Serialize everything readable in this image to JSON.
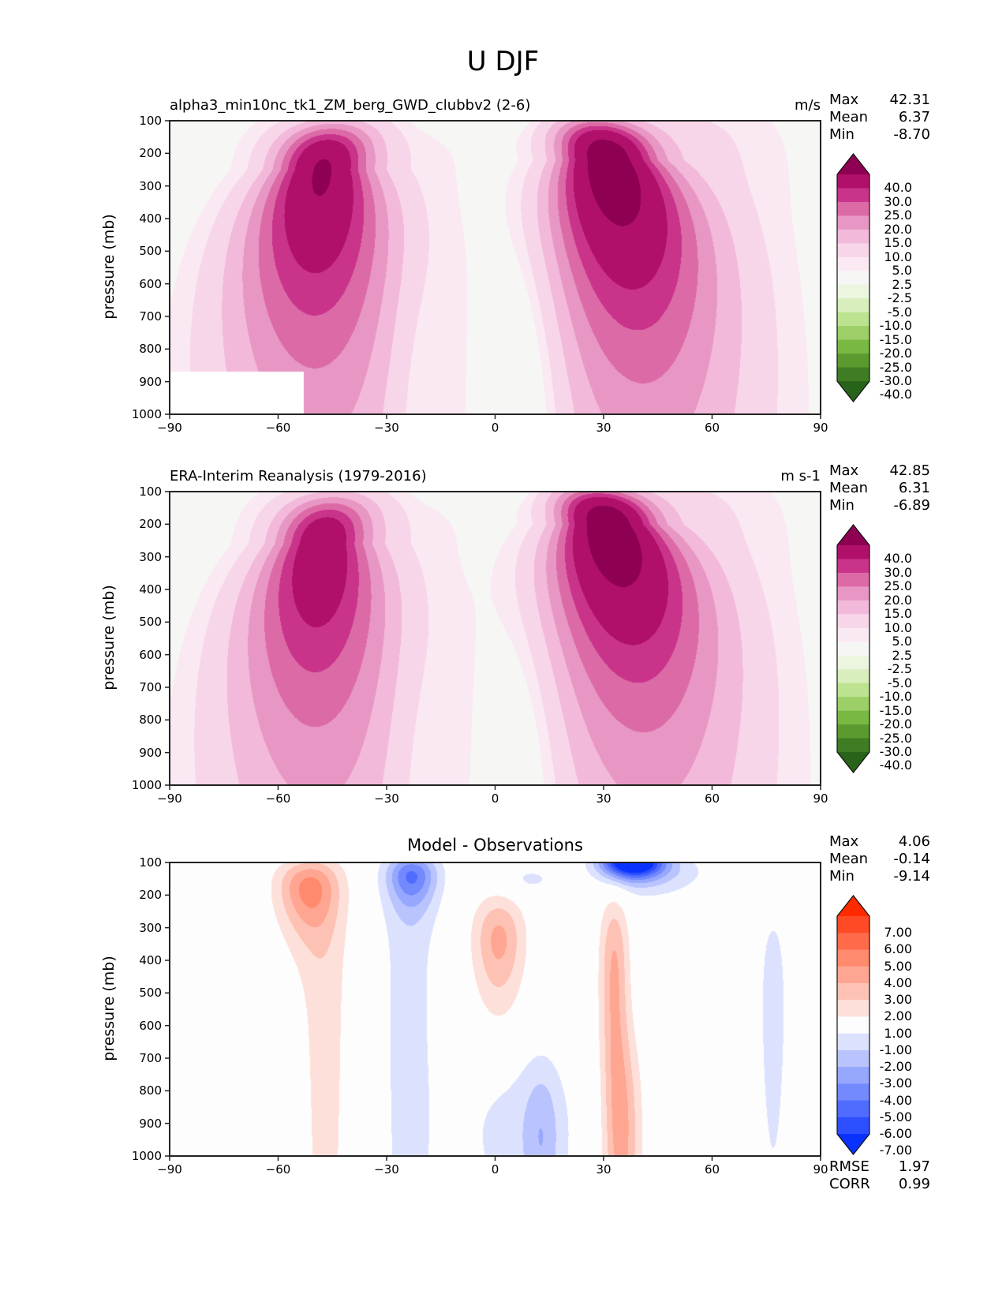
{
  "figure": {
    "title": "U DJF"
  },
  "chart_data": [
    {
      "type": "heatmap",
      "panel": "model",
      "title": "alpha3_min10nc_tk1_ZM_berg_GWD_clubbv2 (2-6)",
      "units": "m/s",
      "xlabel": "",
      "ylabel": "pressure (mb)",
      "xlim": [
        -90,
        90
      ],
      "ylim": [
        1000,
        100
      ],
      "xticks": [
        "−90",
        "−60",
        "−30",
        "0",
        "30",
        "60",
        "90"
      ],
      "xtick_values": [
        -90,
        -60,
        -30,
        0,
        30,
        60,
        90
      ],
      "yticks": [
        "100",
        "200",
        "300",
        "400",
        "500",
        "600",
        "700",
        "800",
        "900",
        "1000"
      ],
      "ytick_values": [
        100,
        200,
        300,
        400,
        500,
        600,
        700,
        800,
        900,
        1000
      ],
      "stats": {
        "max_label": "Max",
        "max": "42.31",
        "mean_label": "Mean",
        "mean": "6.37",
        "min_label": "Min",
        "min": "-8.70"
      },
      "colorbar": {
        "levels": [
          "40.0",
          "30.0",
          "25.0",
          "20.0",
          "15.0",
          "10.0",
          "5.0",
          "2.5",
          "-2.5",
          "-5.0",
          "-10.0",
          "-15.0",
          "-20.0",
          "-25.0",
          "-30.0",
          "-40.0"
        ],
        "level_values": [
          -40,
          -30,
          -25,
          -20,
          -15,
          -10,
          -5,
          -2.5,
          2.5,
          5,
          10,
          15,
          20,
          25,
          30,
          40
        ],
        "colors": [
          "#8e0152",
          "#b0106a",
          "#c9348a",
          "#dc6aa7",
          "#e897c4",
          "#f2b9da",
          "#f8d6ea",
          "#fae9f3",
          "#f6f6f5",
          "#ebf5df",
          "#d8efbd",
          "#bde391",
          "#9ccf67",
          "#7ab844",
          "#5a9a2f",
          "#3f7c23",
          "#276419"
        ],
        "extend": "both"
      },
      "features": {
        "sh_jet": {
          "lat": -48,
          "p": 250,
          "peak": 36
        },
        "nh_jet": {
          "lat": 31,
          "p": 220,
          "peak": 42.31
        },
        "tropical_easterly": {
          "lat": 8,
          "p": 850,
          "min": -8.7
        },
        "masked_region": {
          "lat_range": [
            -90,
            -53
          ],
          "p_range": [
            870,
            1000
          ]
        }
      }
    },
    {
      "type": "heatmap",
      "panel": "observations",
      "title": "ERA-Interim Reanalysis (1979-2016)",
      "units": "m s-1",
      "xlabel": "",
      "ylabel": "pressure (mb)",
      "xlim": [
        -90,
        90
      ],
      "ylim": [
        1000,
        100
      ],
      "xticks": [
        "−90",
        "−60",
        "−30",
        "0",
        "30",
        "60",
        "90"
      ],
      "xtick_values": [
        -90,
        -60,
        -30,
        0,
        30,
        60,
        90
      ],
      "yticks": [
        "100",
        "200",
        "300",
        "400",
        "500",
        "600",
        "700",
        "800",
        "900",
        "1000"
      ],
      "ytick_values": [
        100,
        200,
        300,
        400,
        500,
        600,
        700,
        800,
        900,
        1000
      ],
      "stats": {
        "max_label": "Max",
        "max": "42.85",
        "mean_label": "Mean",
        "mean": "6.31",
        "min_label": "Min",
        "min": "-6.89"
      },
      "colorbar": {
        "levels": [
          "40.0",
          "30.0",
          "25.0",
          "20.0",
          "15.0",
          "10.0",
          "5.0",
          "2.5",
          "-2.5",
          "-5.0",
          "-10.0",
          "-15.0",
          "-20.0",
          "-25.0",
          "-30.0",
          "-40.0"
        ],
        "level_values": [
          -40,
          -30,
          -25,
          -20,
          -15,
          -10,
          -5,
          -2.5,
          2.5,
          5,
          10,
          15,
          20,
          25,
          30,
          40
        ],
        "colors": [
          "#8e0152",
          "#b0106a",
          "#c9348a",
          "#dc6aa7",
          "#e897c4",
          "#f2b9da",
          "#f8d6ea",
          "#fae9f3",
          "#f6f6f5",
          "#ebf5df",
          "#d8efbd",
          "#bde391",
          "#9ccf67",
          "#7ab844",
          "#5a9a2f",
          "#3f7c23",
          "#276419"
        ],
        "extend": "both"
      },
      "features": {
        "sh_jet": {
          "lat": -48,
          "p": 260,
          "peak": 32
        },
        "nh_jet": {
          "lat": 31,
          "p": 200,
          "peak": 42.85
        },
        "tropical_easterly": {
          "lat": 8,
          "p": 850,
          "min": -6.89
        }
      }
    },
    {
      "type": "heatmap",
      "panel": "difference",
      "title": "Model - Observations",
      "units": "",
      "xlabel": "",
      "ylabel": "pressure (mb)",
      "xlim": [
        -90,
        90
      ],
      "ylim": [
        1000,
        100
      ],
      "xticks": [
        "−90",
        "−60",
        "−30",
        "0",
        "30",
        "60",
        "90"
      ],
      "xtick_values": [
        -90,
        -60,
        -30,
        0,
        30,
        60,
        90
      ],
      "yticks": [
        "100",
        "200",
        "300",
        "400",
        "500",
        "600",
        "700",
        "800",
        "900",
        "1000"
      ],
      "ytick_values": [
        100,
        200,
        300,
        400,
        500,
        600,
        700,
        800,
        900,
        1000
      ],
      "stats": {
        "max_label": "Max",
        "max": "4.06",
        "mean_label": "Mean",
        "mean": "-0.14",
        "min_label": "Min",
        "min": "-9.14"
      },
      "metrics": {
        "rmse_label": "RMSE",
        "rmse": "1.97",
        "corr_label": "CORR",
        "corr": "0.99"
      },
      "colorbar": {
        "levels": [
          "7.00",
          "6.00",
          "5.00",
          "4.00",
          "3.00",
          "2.00",
          "1.00",
          "-1.00",
          "-2.00",
          "-3.00",
          "-4.00",
          "-5.00",
          "-6.00",
          "-7.00"
        ],
        "level_values": [
          -7,
          -6,
          -5,
          -4,
          -3,
          -2,
          -1,
          1,
          2,
          3,
          4,
          5,
          6,
          7
        ],
        "colors": [
          "#ff2a00",
          "#ff4a26",
          "#ff6a4a",
          "#ff8a6d",
          "#fea692",
          "#fec2b5",
          "#fee0da",
          "#fdfdfd",
          "#dce2fe",
          "#b9c4fe",
          "#96a7fe",
          "#7389fe",
          "#506cfe",
          "#2d4ffe",
          "#0a32fe"
        ],
        "extend": "both"
      },
      "features": {
        "positive_max": {
          "lat": -52,
          "p": 180,
          "value": 4.06
        },
        "negative_min": {
          "lat": 38,
          "p": 100,
          "value": -9.14
        }
      }
    }
  ]
}
